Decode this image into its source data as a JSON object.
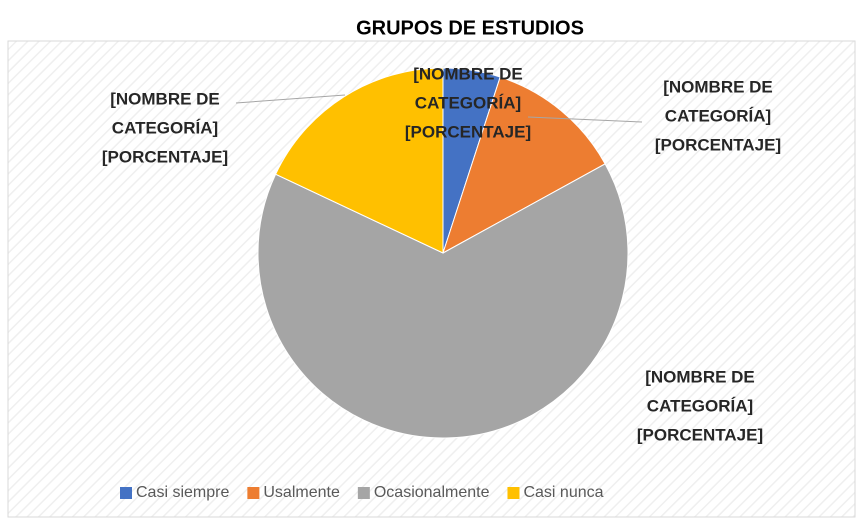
{
  "chart_data": {
    "type": "pie",
    "title": "GRUPOS DE ESTUDIOS",
    "categories": [
      "Casi siempre",
      "Usalmente",
      "Ocasionalmente",
      "Casi nunca"
    ],
    "values": [
      5,
      12,
      65,
      18
    ],
    "colors": [
      "#4472c4",
      "#ed7d31",
      "#a5a5a5",
      "#ffc000"
    ],
    "data_labels": [
      [
        "[NOMBRE DE",
        "CATEGORÍA]",
        "[PORCENTAJE]"
      ],
      [
        "[NOMBRE DE",
        "CATEGORÍA]",
        "[PORCENTAJE]"
      ],
      [
        "[NOMBRE DE",
        "CATEGORÍA]",
        "[PORCENTAJE]"
      ],
      [
        "[NOMBRE DE",
        "CATEGORÍA]",
        "[PORCENTAJE]"
      ]
    ],
    "legend": "bottom"
  }
}
